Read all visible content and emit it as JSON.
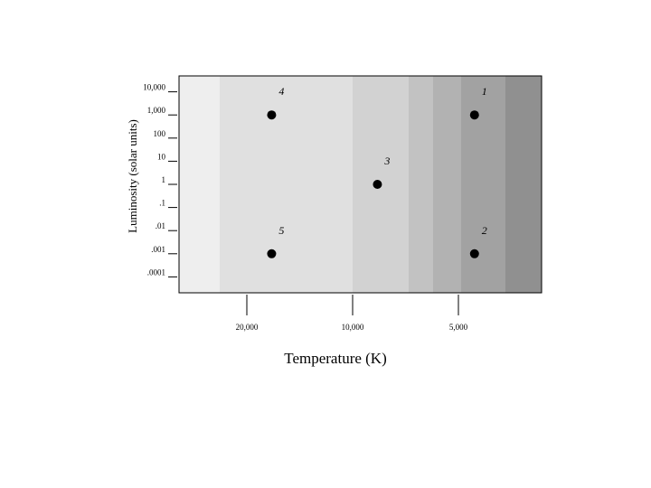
{
  "chart_data": {
    "type": "scatter",
    "title": "",
    "xlabel": "Temperature (K)",
    "ylabel": "Luminosity (solar units)",
    "x_scale": "log",
    "x_reversed": true,
    "y_scale": "log",
    "x_ticks": [
      {
        "value": 20000,
        "label": "20,000"
      },
      {
        "value": 10000,
        "label": "10,000"
      },
      {
        "value": 5000,
        "label": "5,000"
      }
    ],
    "y_ticks": [
      {
        "value": 10000,
        "label": "10,000"
      },
      {
        "value": 1000,
        "label": "1,000"
      },
      {
        "value": 100,
        "label": "100"
      },
      {
        "value": 10,
        "label": "10"
      },
      {
        "value": 1,
        "label": "1"
      },
      {
        "value": 0.1,
        "label": ".1"
      },
      {
        "value": 0.01,
        "label": ".01"
      },
      {
        "value": 0.001,
        "label": ".001"
      },
      {
        "value": 0.0001,
        "label": ".0001"
      }
    ],
    "points": [
      {
        "label": "1",
        "x": 4500,
        "y": 1000
      },
      {
        "label": "2",
        "x": 4500,
        "y": 0.001
      },
      {
        "label": "3",
        "x": 8500,
        "y": 1
      },
      {
        "label": "4",
        "x": 17000,
        "y": 1000
      },
      {
        "label": "5",
        "x": 17000,
        "y": 0.001
      }
    ],
    "grid": false,
    "legend": "none",
    "background_bands": [
      "#eeeeee",
      "#e0e0e0",
      "#d2d2d2",
      "#c2c2c2",
      "#b2b2b2",
      "#a2a2a2",
      "#909090"
    ],
    "point_color": "#000000"
  }
}
